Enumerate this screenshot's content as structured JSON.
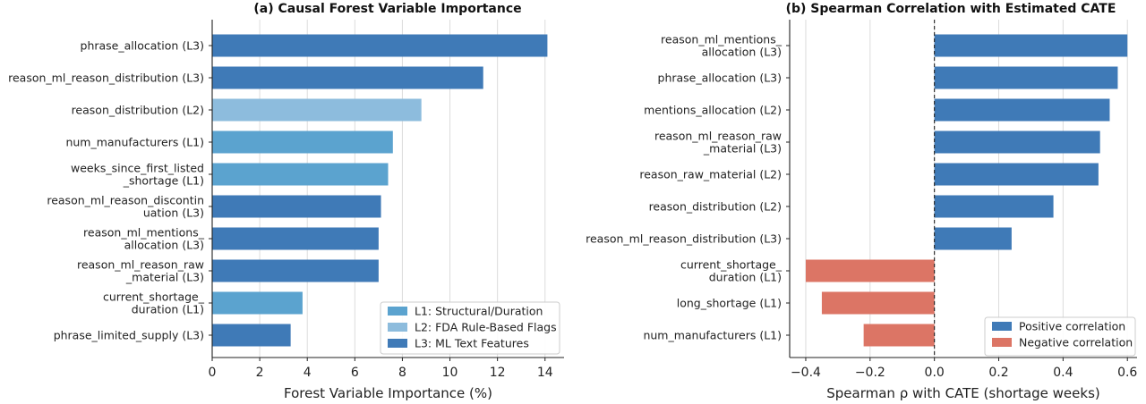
{
  "chart_data": [
    {
      "type": "bar",
      "orientation": "horizontal",
      "title": "(a) Causal Forest Variable Importance",
      "xlabel": "Forest Variable Importance (%)",
      "ylabel": "",
      "xlim": [
        0,
        14.8
      ],
      "xticks": [
        0,
        2,
        4,
        6,
        8,
        10,
        12,
        14
      ],
      "grid": "x",
      "legend_position": "bottom-right",
      "legend": [
        {
          "label": "L1: Structural/Duration",
          "color": "#5ba3cf"
        },
        {
          "label": "L2: FDA Rule-Based Flags",
          "color": "#8dbcdd"
        },
        {
          "label": "L3: ML Text Features",
          "color": "#3f7ab7"
        }
      ],
      "categories": [
        [
          "phrase_allocation (L3)"
        ],
        [
          "reason_ml_reason_distribution (L3)"
        ],
        [
          "reason_distribution (L2)"
        ],
        [
          "num_manufacturers (L1)"
        ],
        [
          "weeks_since_first_listed",
          "_shortage (L1)"
        ],
        [
          "reason_ml_reason_discontin",
          "uation (L3)"
        ],
        [
          "reason_ml_mentions_",
          "allocation (L3)"
        ],
        [
          "reason_ml_reason_raw",
          "_material (L3)"
        ],
        [
          "current_shortage_",
          "duration (L1)"
        ],
        [
          "phrase_limited_supply (L3)"
        ]
      ],
      "values": [
        14.1,
        11.4,
        8.8,
        7.6,
        7.4,
        7.1,
        7.0,
        7.0,
        3.8,
        3.3
      ],
      "bar_colors": [
        "#3f7ab7",
        "#3f7ab7",
        "#8dbcdd",
        "#5ba3cf",
        "#5ba3cf",
        "#3f7ab7",
        "#3f7ab7",
        "#3f7ab7",
        "#5ba3cf",
        "#3f7ab7"
      ]
    },
    {
      "type": "bar",
      "orientation": "horizontal",
      "title": "(b) Spearman Correlation with Estimated CATE",
      "xlabel": "Spearman ρ with CATE (shortage weeks)",
      "ylabel": "",
      "xlim": [
        -0.45,
        0.63
      ],
      "xticks": [
        -0.4,
        -0.2,
        0.0,
        0.2,
        0.4,
        0.6
      ],
      "xtick_labels": [
        "−0.4",
        "−0.2",
        "0.0",
        "0.2",
        "0.4",
        "0.6"
      ],
      "grid": "x",
      "zero_line": "dashed",
      "legend_position": "bottom-right",
      "legend": [
        {
          "label": "Positive correlation",
          "color": "#3f7ab7"
        },
        {
          "label": "Negative correlation",
          "color": "#dc7565"
        }
      ],
      "categories": [
        [
          "reason_ml_mentions_",
          "allocation (L3)"
        ],
        [
          "phrase_allocation (L3)"
        ],
        [
          "mentions_allocation (L2)"
        ],
        [
          "reason_ml_reason_raw",
          "_material (L3)"
        ],
        [
          "reason_raw_material (L2)"
        ],
        [
          "reason_distribution (L2)"
        ],
        [
          "reason_ml_reason_distribution (L3)"
        ],
        [
          "current_shortage_",
          "duration (L1)"
        ],
        [
          "long_shortage (L1)"
        ],
        [
          "num_manufacturers (L1)"
        ]
      ],
      "values": [
        0.6,
        0.57,
        0.545,
        0.515,
        0.51,
        0.37,
        0.24,
        -0.4,
        -0.35,
        -0.22
      ],
      "positive_color": "#3f7ab7",
      "negative_color": "#dc7565"
    }
  ]
}
